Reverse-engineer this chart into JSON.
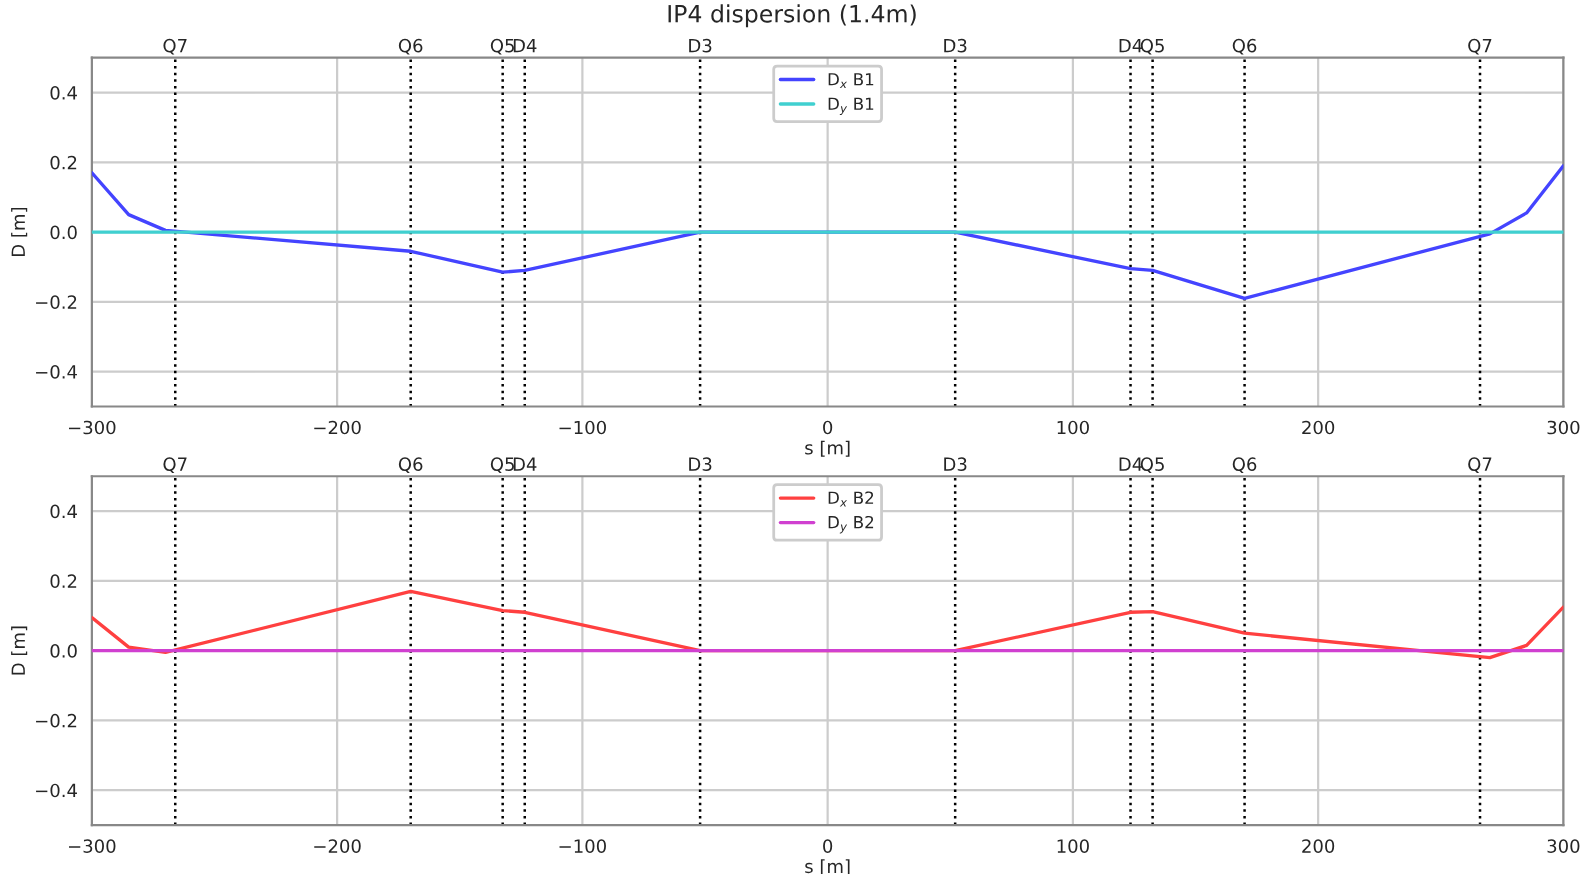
{
  "chart_data": [
    {
      "type": "line",
      "title": "IP4 dispersion (1.4m)",
      "xlabel": "s [m]",
      "ylabel": "D [m]",
      "xlim": [
        -300,
        300
      ],
      "ylim": [
        -0.5,
        0.5
      ],
      "xticks": [
        -300,
        -200,
        -100,
        0,
        100,
        200,
        300
      ],
      "yticks": [
        -0.4,
        -0.2,
        {
          "value": 0,
          "label": "0.0"
        },
        0.2,
        0.4
      ],
      "grid": true,
      "legend": "top",
      "series": [
        {
          "name": "D$_{x}$ B1",
          "color": "#4444ff",
          "x": [
            -300,
            -285,
            -270,
            -170,
            -132.5,
            -123.5,
            -52,
            52,
            123.5,
            132.5,
            170,
            270,
            285,
            300
          ],
          "values": [
            0.17,
            0.05,
            0.005,
            -0.055,
            -0.115,
            -0.11,
            0.0,
            0.0,
            -0.105,
            -0.11,
            -0.19,
            -0.005,
            0.055,
            0.19
          ]
        },
        {
          "name": "D$_{y}$ B1",
          "color": "#40d0d0",
          "x": [
            -300,
            300
          ],
          "values": [
            0.0,
            0.0
          ]
        }
      ],
      "ref_lines": [
        {
          "axis": "x",
          "value": -266,
          "label": "Q7",
          "color": "#000000",
          "line_style": "dotted"
        },
        {
          "axis": "x",
          "value": -170,
          "label": "Q6",
          "color": "#000000",
          "line_style": "dotted"
        },
        {
          "axis": "x",
          "value": -132.5,
          "label": "Q5",
          "color": "#000000",
          "line_style": "dotted"
        },
        {
          "axis": "x",
          "value": -123.5,
          "label": "D4",
          "color": "#000000",
          "line_style": "dotted"
        },
        {
          "axis": "x",
          "value": -52,
          "label": "D3",
          "color": "#000000",
          "line_style": "dotted"
        },
        {
          "axis": "x",
          "value": 52,
          "label": "D3",
          "color": "#000000",
          "line_style": "dotted"
        },
        {
          "axis": "x",
          "value": 123.5,
          "label": "D4",
          "color": "#000000",
          "line_style": "dotted"
        },
        {
          "axis": "x",
          "value": 132.5,
          "label": "Q5",
          "color": "#000000",
          "line_style": "dotted"
        },
        {
          "axis": "x",
          "value": 170,
          "label": "Q6",
          "color": "#000000",
          "line_style": "dotted"
        },
        {
          "axis": "x",
          "value": 266,
          "label": "Q7",
          "color": "#000000",
          "line_style": "dotted"
        }
      ]
    },
    {
      "type": "line",
      "xlabel": "s [m]",
      "ylabel": "D [m]",
      "xlim": [
        -300,
        300
      ],
      "ylim": [
        -0.5,
        0.5
      ],
      "xticks": [
        -300,
        -200,
        -100,
        0,
        100,
        200,
        300
      ],
      "yticks": [
        -0.4,
        -0.2,
        {
          "value": 0,
          "label": "0.0"
        },
        0.2,
        0.4
      ],
      "grid": true,
      "legend": "top",
      "series": [
        {
          "name": "D$_{x}$ B2",
          "color": "#ff4040",
          "x": [
            -300,
            -285,
            -270,
            -170,
            -132.5,
            -123.5,
            -52,
            52,
            123.5,
            132.5,
            170,
            270,
            285,
            300
          ],
          "values": [
            0.095,
            0.01,
            -0.005,
            0.17,
            0.115,
            0.11,
            0.0,
            0.0,
            0.11,
            0.112,
            0.05,
            -0.02,
            0.015,
            0.125
          ]
        },
        {
          "name": "D$_{y}$ B2",
          "color": "#d040d0",
          "x": [
            -300,
            300
          ],
          "values": [
            0.0,
            0.0
          ]
        }
      ],
      "ref_lines": [
        {
          "axis": "x",
          "value": -266,
          "label": "Q7",
          "color": "#000000",
          "line_style": "dotted"
        },
        {
          "axis": "x",
          "value": -170,
          "label": "Q6",
          "color": "#000000",
          "line_style": "dotted"
        },
        {
          "axis": "x",
          "value": -132.5,
          "label": "Q5",
          "color": "#000000",
          "line_style": "dotted"
        },
        {
          "axis": "x",
          "value": -123.5,
          "label": "D4",
          "color": "#000000",
          "line_style": "dotted"
        },
        {
          "axis": "x",
          "value": -52,
          "label": "D3",
          "color": "#000000",
          "line_style": "dotted"
        },
        {
          "axis": "x",
          "value": 52,
          "label": "D3",
          "color": "#000000",
          "line_style": "dotted"
        },
        {
          "axis": "x",
          "value": 123.5,
          "label": "D4",
          "color": "#000000",
          "line_style": "dotted"
        },
        {
          "axis": "x",
          "value": 132.5,
          "label": "Q5",
          "color": "#000000",
          "line_style": "dotted"
        },
        {
          "axis": "x",
          "value": 170,
          "label": "Q6",
          "color": "#000000",
          "line_style": "dotted"
        },
        {
          "axis": "x",
          "value": 266,
          "label": "Q7",
          "color": "#000000",
          "line_style": "dotted"
        }
      ]
    }
  ]
}
